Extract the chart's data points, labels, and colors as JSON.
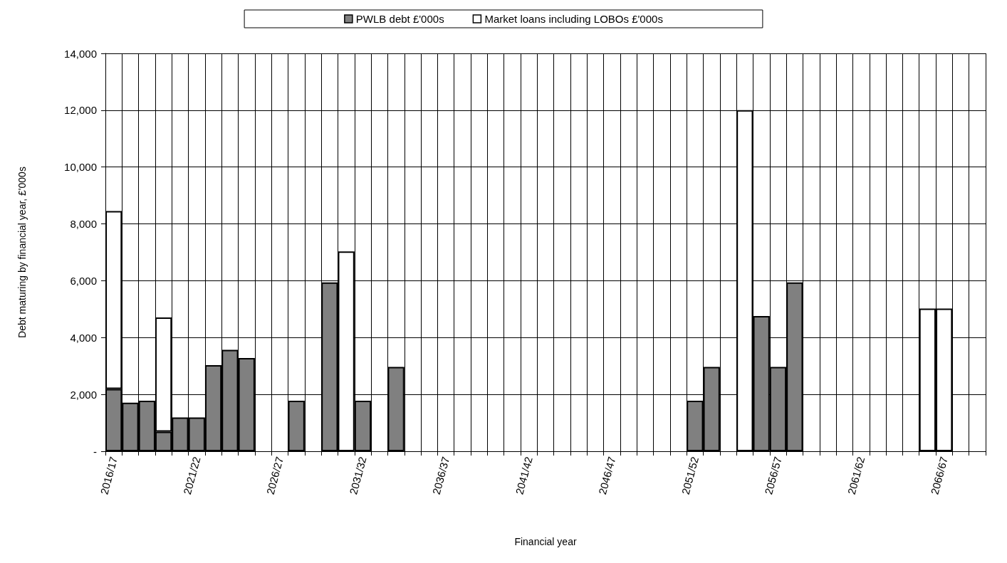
{
  "chart_data": {
    "type": "bar",
    "stacked": true,
    "xlabel": "Financial year",
    "ylabel": "Debt maturing by financial year, £'000s",
    "categories": [
      "2016/17",
      null,
      null,
      null,
      null,
      "2021/22",
      null,
      null,
      null,
      null,
      "2026/27",
      null,
      null,
      null,
      null,
      "2031/32",
      null,
      null,
      null,
      null,
      "2036/37",
      null,
      null,
      null,
      null,
      "2041/42",
      null,
      null,
      null,
      null,
      "2046/47",
      null,
      null,
      null,
      null,
      "2051/52",
      null,
      null,
      null,
      null,
      "2056/57",
      null,
      null,
      null,
      null,
      "2061/62",
      null,
      null,
      null,
      null,
      "2066/67",
      null,
      null
    ],
    "series": [
      {
        "name": "PWLB debt £'000s",
        "color": "#808080",
        "values": [
          2190,
          1710,
          1780,
          690,
          1190,
          1190,
          3030,
          3570,
          3280,
          null,
          null,
          1780,
          null,
          5940,
          null,
          1780,
          null,
          2970,
          null,
          null,
          null,
          null,
          null,
          null,
          null,
          null,
          null,
          null,
          null,
          null,
          null,
          null,
          null,
          null,
          null,
          1780,
          2970,
          null,
          null,
          4760,
          2970,
          5940,
          null,
          null,
          null,
          null,
          null,
          null,
          null,
          null,
          null,
          null,
          null
        ]
      },
      {
        "name": "Market loans including LOBOs £'000s",
        "color": "#ffffff",
        "values": [
          6260,
          null,
          null,
          4020,
          null,
          null,
          null,
          null,
          null,
          null,
          null,
          null,
          null,
          null,
          7030,
          null,
          null,
          null,
          null,
          null,
          null,
          null,
          null,
          null,
          null,
          null,
          null,
          null,
          null,
          null,
          null,
          null,
          null,
          null,
          null,
          null,
          null,
          null,
          12000,
          null,
          null,
          null,
          null,
          null,
          null,
          null,
          null,
          null,
          null,
          5020,
          5020,
          null,
          null
        ]
      }
    ],
    "ylim": [
      0,
      14000
    ],
    "yticks": [
      {
        "value": 0,
        "label": "-"
      },
      {
        "value": 2000,
        "label": "2,000"
      },
      {
        "value": 4000,
        "label": "4,000"
      },
      {
        "value": 6000,
        "label": "6,000"
      },
      {
        "value": 8000,
        "label": "8,000"
      },
      {
        "value": 10000,
        "label": "10,000"
      },
      {
        "value": 12000,
        "label": "12,000"
      },
      {
        "value": 14000,
        "label": "14,000"
      }
    ],
    "grid": true,
    "legend": "top"
  }
}
